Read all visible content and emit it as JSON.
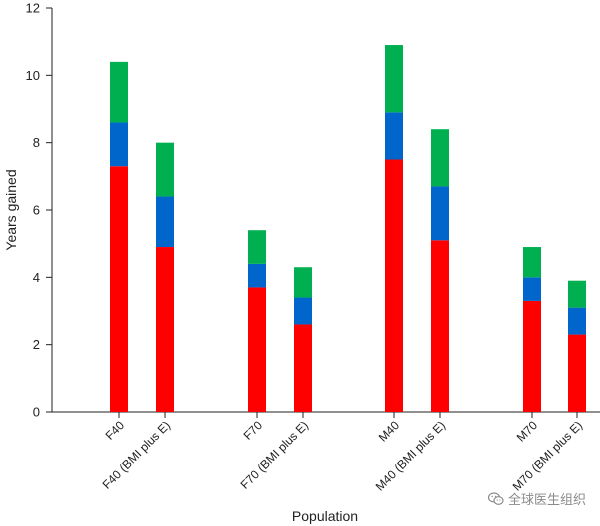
{
  "chart_data": {
    "type": "bar",
    "stacked": true,
    "xlabel": "Population",
    "ylabel": "Years gained",
    "ylim": [
      0,
      12
    ],
    "yticks": [
      0,
      2,
      4,
      6,
      8,
      10,
      12
    ],
    "grid": false,
    "legend": "none",
    "categories": [
      "F40",
      "F40 (BMI plus E)",
      "F70",
      "F70 (BMI plus E)",
      "M40",
      "M40 (BMI plus E)",
      "M70",
      "M70 (BMI plus E)"
    ],
    "series": [
      {
        "color": "#ff0000",
        "values": [
          7.3,
          4.9,
          3.7,
          2.6,
          7.5,
          5.1,
          3.3,
          2.3
        ]
      },
      {
        "color": "#0066cc",
        "values": [
          1.3,
          1.5,
          0.7,
          0.8,
          1.4,
          1.6,
          0.7,
          0.8
        ]
      },
      {
        "color": "#00b050",
        "values": [
          1.8,
          1.6,
          1.0,
          0.9,
          2.0,
          1.7,
          0.9,
          0.8
        ]
      }
    ]
  },
  "watermark": {
    "text": "全球医生组织",
    "icon": "wechat-logo-icon"
  }
}
